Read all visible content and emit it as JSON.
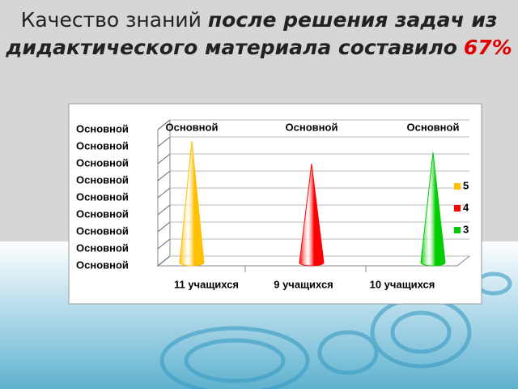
{
  "title": {
    "plain": "Качество знаний",
    "bold": "после решения задач из дидактического материала составило",
    "highlight": "67%"
  },
  "chart_data": {
    "type": "cone",
    "categories": [
      "11 учащихся",
      "9 учащихся",
      "10 учащихся"
    ],
    "series": [
      {
        "name": "5",
        "color": "#ffc000",
        "values": [
          11,
          null,
          null
        ],
        "value_labels": [
          "Основной",
          null,
          null
        ]
      },
      {
        "name": "4",
        "color": "#ff0000",
        "values": [
          null,
          9,
          null
        ],
        "value_labels": [
          null,
          "Основной",
          null
        ]
      },
      {
        "name": "3",
        "color": "#00cc00",
        "values": [
          null,
          null,
          10
        ],
        "value_labels": [
          null,
          null,
          "Основной"
        ]
      }
    ],
    "ylim": [
      0,
      12
    ],
    "yticks": [
      {
        "value": 0,
        "label": "Основной"
      },
      {
        "value": 1.5,
        "label": "Основной"
      },
      {
        "value": 3,
        "label": "Основной"
      },
      {
        "value": 4.5,
        "label": "Основной"
      },
      {
        "value": 6,
        "label": "Основной"
      },
      {
        "value": 7.5,
        "label": "Основной"
      },
      {
        "value": 9,
        "label": "Основной"
      },
      {
        "value": 10.5,
        "label": "Основной"
      },
      {
        "value": 12,
        "label": "Основной"
      }
    ],
    "grid": true,
    "legend": "right"
  }
}
